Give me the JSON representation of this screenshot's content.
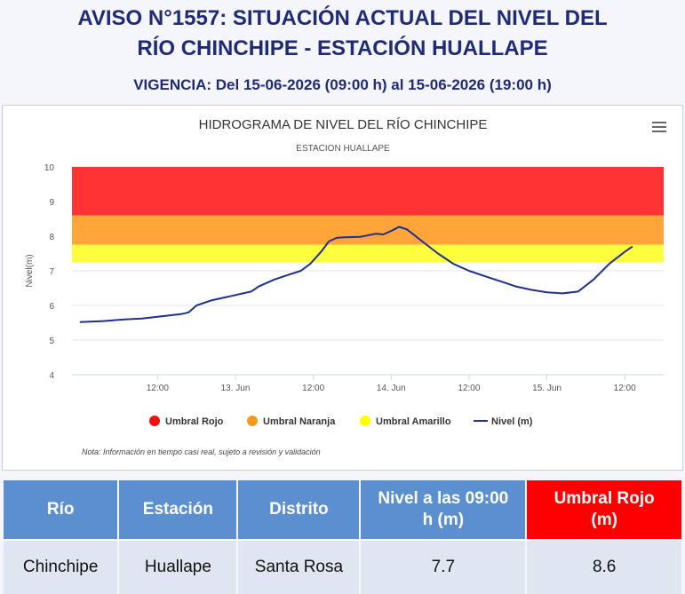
{
  "header": {
    "title_line1": "AVISO N°1557: SITUACIÓN ACTUAL DEL NIVEL DEL",
    "title_line2": "RÍO CHINCHIPE - ESTACIÓN HUALLAPE",
    "vigencia": "VIGENCIA: Del 15-06-2026 (09:00 h) al 15-06-2026 (19:00 h)"
  },
  "chart_data": {
    "type": "line",
    "title": "HIDROGRAMA DE NIVEL DEL RÍO CHINCHIPE",
    "subtitle": "ESTACION HUALLAPE",
    "ylabel": "Nivel(m)",
    "ylim": [
      4,
      10
    ],
    "xlim": [
      -0.55,
      3.25
    ],
    "ytick_labels": [
      "4",
      "5",
      "6",
      "7",
      "8",
      "9",
      "10"
    ],
    "xtick_labels": [
      {
        "x": 0,
        "label": "12:00"
      },
      {
        "x": 0.5,
        "label": "13. Jun"
      },
      {
        "x": 1,
        "label": "12:00"
      },
      {
        "x": 1.5,
        "label": "14. Jun"
      },
      {
        "x": 2,
        "label": "12:00"
      },
      {
        "x": 2.5,
        "label": "15. Jun"
      },
      {
        "x": 3,
        "label": "12:00"
      }
    ],
    "bands": [
      {
        "name": "Umbral Rojo",
        "from": 8.6,
        "to": 10,
        "color": "#ff3333"
      },
      {
        "name": "Umbral Naranja",
        "from": 7.75,
        "to": 8.6,
        "color": "#ffa53a"
      },
      {
        "name": "Umbral Amarillo",
        "from": 7.25,
        "to": 7.75,
        "color": "#ffff3c"
      }
    ],
    "series": [
      {
        "name": "Nivel (m)",
        "color": "#1f2f8f",
        "x": [
          -0.5,
          -0.35,
          -0.2,
          -0.1,
          0.05,
          0.15,
          0.2,
          0.25,
          0.35,
          0.45,
          0.5,
          0.6,
          0.65,
          0.75,
          0.85,
          0.92,
          0.98,
          1.05,
          1.1,
          1.15,
          1.2,
          1.3,
          1.4,
          1.45,
          1.5,
          1.55,
          1.6,
          1.7,
          1.8,
          1.9,
          2.0,
          2.1,
          2.2,
          2.3,
          2.4,
          2.5,
          2.6,
          2.7,
          2.8,
          2.9,
          3.0,
          3.05
        ],
        "y": [
          5.52,
          5.55,
          5.6,
          5.62,
          5.7,
          5.75,
          5.8,
          6.0,
          6.15,
          6.25,
          6.3,
          6.4,
          6.55,
          6.75,
          6.9,
          7.0,
          7.2,
          7.55,
          7.85,
          7.95,
          7.97,
          7.98,
          8.07,
          8.05,
          8.15,
          8.27,
          8.2,
          7.85,
          7.5,
          7.2,
          7.0,
          6.85,
          6.7,
          6.55,
          6.45,
          6.38,
          6.35,
          6.4,
          6.75,
          7.2,
          7.55,
          7.7
        ]
      }
    ],
    "legend": {
      "placement": "bottom-center"
    },
    "note": "Nota: Información en tiempo casi real, sujeto a revisión y validación"
  },
  "table": {
    "headers": [
      "Río",
      "Estación",
      "Distrito",
      "Nivel a las 09:00 h (m)",
      "Umbral Rojo (m)"
    ],
    "rows": [
      [
        "Chinchipe",
        "Huallape",
        "Santa Rosa",
        "7.7",
        "8.6"
      ]
    ]
  }
}
